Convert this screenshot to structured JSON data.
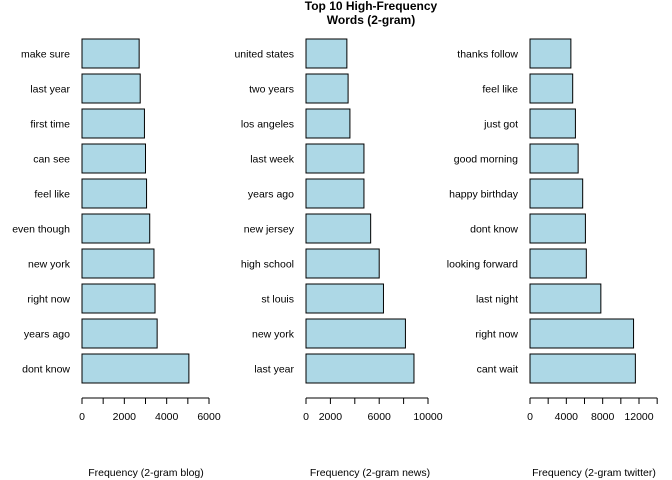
{
  "title_line1": "Top 10 High-Frequency",
  "title_line2": "Words (2-gram)",
  "colors": {
    "bar_fill": "#add8e6",
    "bar_stroke": "#000000",
    "background": "#ffffff"
  },
  "chart_data": [
    {
      "type": "bar",
      "orientation": "horizontal",
      "xlabel": "Frequency (2-gram blog)",
      "xlim": [
        0,
        6000
      ],
      "xticks": [
        0,
        2000,
        4000,
        6000
      ],
      "categories": [
        "make sure",
        "last year",
        "first time",
        "can see",
        "feel like",
        "even though",
        "new york",
        "right now",
        "years ago",
        "dont know"
      ],
      "values": [
        2700,
        2750,
        2950,
        3000,
        3050,
        3200,
        3400,
        3450,
        3550,
        5050
      ]
    },
    {
      "type": "bar",
      "orientation": "horizontal",
      "xlabel": "Frequency (2-gram news)",
      "xlim": [
        0,
        10000
      ],
      "xticks": [
        0,
        2000,
        6000,
        10000
      ],
      "categories": [
        "united states",
        "two years",
        "los angeles",
        "last week",
        "years ago",
        "new jersey",
        "high school",
        "st louis",
        "new york",
        "last year"
      ],
      "values": [
        3350,
        3450,
        3600,
        4750,
        4750,
        5300,
        6000,
        6350,
        8150,
        8850
      ]
    },
    {
      "type": "bar",
      "orientation": "horizontal",
      "xlabel": "Frequency (2-gram twitter)",
      "xlim": [
        0,
        13500
      ],
      "xticks": [
        0,
        4000,
        8000,
        12000
      ],
      "categories": [
        "thanks follow",
        "feel like",
        "just got",
        "good morning",
        "happy birthday",
        "dont know",
        "looking forward",
        "last night",
        "right now",
        "cant wait"
      ],
      "values": [
        4500,
        4700,
        5000,
        5300,
        5800,
        6100,
        6200,
        7800,
        11400,
        11600
      ]
    }
  ]
}
